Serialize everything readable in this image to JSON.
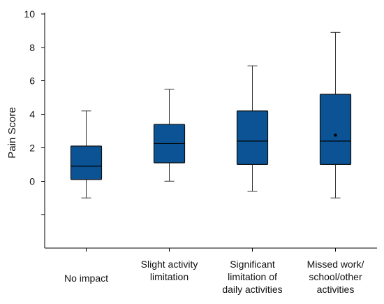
{
  "chart_data": {
    "type": "boxplot",
    "ylabel": "Pain Score",
    "ylim": [
      -4,
      10
    ],
    "yticks": [
      0,
      2,
      4,
      6,
      8,
      10
    ],
    "grid": false,
    "categories": [
      [
        "No impact"
      ],
      [
        "Slight activity",
        "limitation"
      ],
      [
        "Significant",
        "limitation of",
        "daily activities"
      ],
      [
        "Missed work/",
        "school/other",
        "activities"
      ]
    ],
    "boxes": [
      {
        "whisker_low": -1.0,
        "q1": 0.1,
        "median": 0.9,
        "q3": 2.1,
        "whisker_high": 4.2
      },
      {
        "whisker_low": 0.0,
        "q1": 1.1,
        "median": 2.25,
        "q3": 3.4,
        "whisker_high": 5.5
      },
      {
        "whisker_low": -0.6,
        "q1": 1.0,
        "median": 2.4,
        "q3": 4.2,
        "whisker_high": 6.9
      },
      {
        "whisker_low": -1.0,
        "q1": 1.0,
        "median": 2.4,
        "q3": 5.2,
        "whisker_high": 8.9,
        "mean": 2.75
      }
    ],
    "colors": {
      "box_fill": "#0B5394",
      "box_edge": "#111111"
    }
  }
}
